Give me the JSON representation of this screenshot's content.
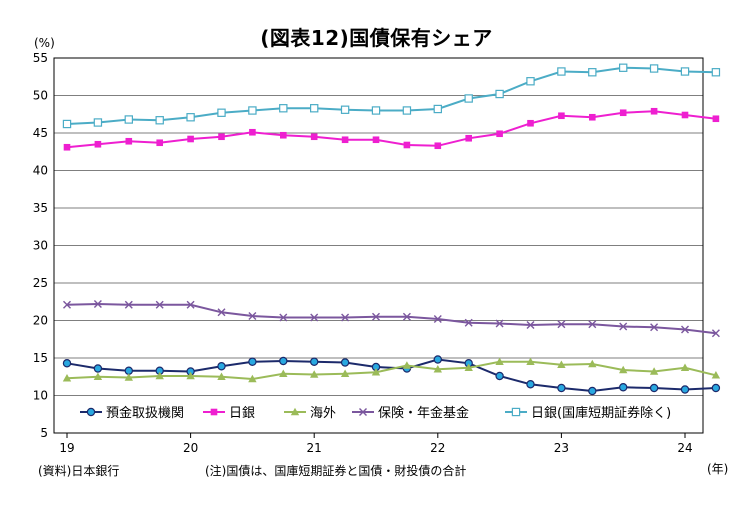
{
  "chart_data": {
    "type": "line",
    "title": "(図表12)国債保有シェア",
    "y_unit": "(%)",
    "x_unit": "(年)",
    "ylim": [
      5,
      55
    ],
    "yticks": [
      5,
      10,
      15,
      20,
      25,
      30,
      35,
      40,
      45,
      50,
      55
    ],
    "xticks": [
      "19",
      "20",
      "21",
      "22",
      "23",
      "24"
    ],
    "grid": "horizontal",
    "legend_position": "inside-bottom",
    "x": [
      "2019Q1",
      "2019Q2",
      "2019Q3",
      "2019Q4",
      "2020Q1",
      "2020Q2",
      "2020Q3",
      "2020Q4",
      "2021Q1",
      "2021Q2",
      "2021Q3",
      "2021Q4",
      "2022Q1",
      "2022Q2",
      "2022Q3",
      "2022Q4",
      "2023Q1",
      "2023Q2",
      "2023Q3",
      "2023Q4",
      "2024Q1",
      "2024Q2"
    ],
    "series": [
      {
        "name": "預金取扱機関",
        "color": "#1c2a6b",
        "marker": "circle",
        "marker_fill": "#29a8e0",
        "values": [
          14.3,
          13.6,
          13.3,
          13.3,
          13.2,
          13.9,
          14.5,
          14.6,
          14.5,
          14.4,
          13.8,
          13.6,
          14.8,
          14.3,
          12.6,
          11.5,
          11.0,
          10.6,
          11.1,
          11.0,
          10.8,
          11.0
        ]
      },
      {
        "name": "日銀",
        "color": "#ee1fd0",
        "marker": "square",
        "values": [
          43.1,
          43.5,
          43.9,
          43.7,
          44.2,
          44.5,
          45.1,
          44.7,
          44.5,
          44.1,
          44.1,
          43.4,
          43.3,
          44.3,
          44.9,
          46.3,
          47.3,
          47.1,
          47.7,
          47.9,
          47.4,
          46.9
        ]
      },
      {
        "name": "海外",
        "color": "#9bbb59",
        "marker": "triangle",
        "values": [
          12.3,
          12.5,
          12.4,
          12.6,
          12.6,
          12.5,
          12.2,
          12.9,
          12.8,
          12.9,
          13.1,
          14.0,
          13.5,
          13.7,
          14.5,
          14.5,
          14.1,
          14.2,
          13.4,
          13.2,
          13.7,
          12.7
        ]
      },
      {
        "name": "保険・年金基金",
        "color": "#7b579e",
        "marker": "x",
        "values": [
          22.1,
          22.2,
          22.1,
          22.1,
          22.1,
          21.1,
          20.6,
          20.4,
          20.4,
          20.4,
          20.5,
          20.5,
          20.2,
          19.7,
          19.6,
          19.4,
          19.5,
          19.5,
          19.2,
          19.1,
          18.8,
          18.3
        ]
      },
      {
        "name": "日銀(国庫短期証券除く)",
        "color": "#4bacc6",
        "marker": "square-open",
        "values": [
          46.2,
          46.4,
          46.8,
          46.7,
          47.1,
          47.7,
          48.0,
          48.3,
          48.3,
          48.1,
          48.0,
          48.0,
          48.2,
          49.6,
          50.2,
          51.9,
          53.2,
          53.1,
          53.7,
          53.6,
          53.2,
          53.1
        ]
      }
    ]
  },
  "notes": {
    "source": "(資料)日本銀行",
    "note": "(注)国債は、国庫短期証券と国債・財投債の合計"
  }
}
